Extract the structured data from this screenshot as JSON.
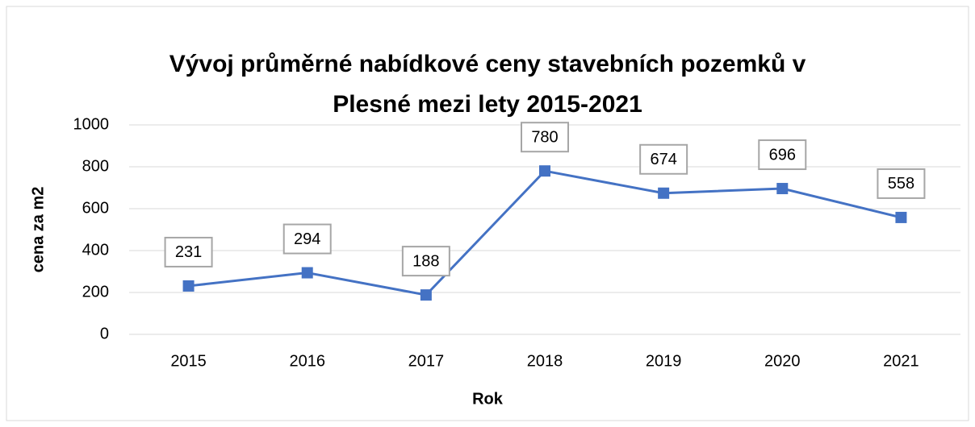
{
  "chart_data": {
    "type": "line",
    "title": "Vývoj průměrné nabídkové ceny stavebních pozemků v Plesné mezi lety 2015-2021",
    "x_label": "Rok",
    "y_label": "cena za m2",
    "categories": [
      "2015",
      "2016",
      "2017",
      "2018",
      "2019",
      "2020",
      "2021"
    ],
    "values": [
      231,
      294,
      188,
      780,
      674,
      696,
      558
    ],
    "color": "#4472c4",
    "ylim": [
      0,
      1000
    ],
    "yticks": [
      0,
      200,
      400,
      600,
      800,
      1000
    ],
    "grid": true
  }
}
